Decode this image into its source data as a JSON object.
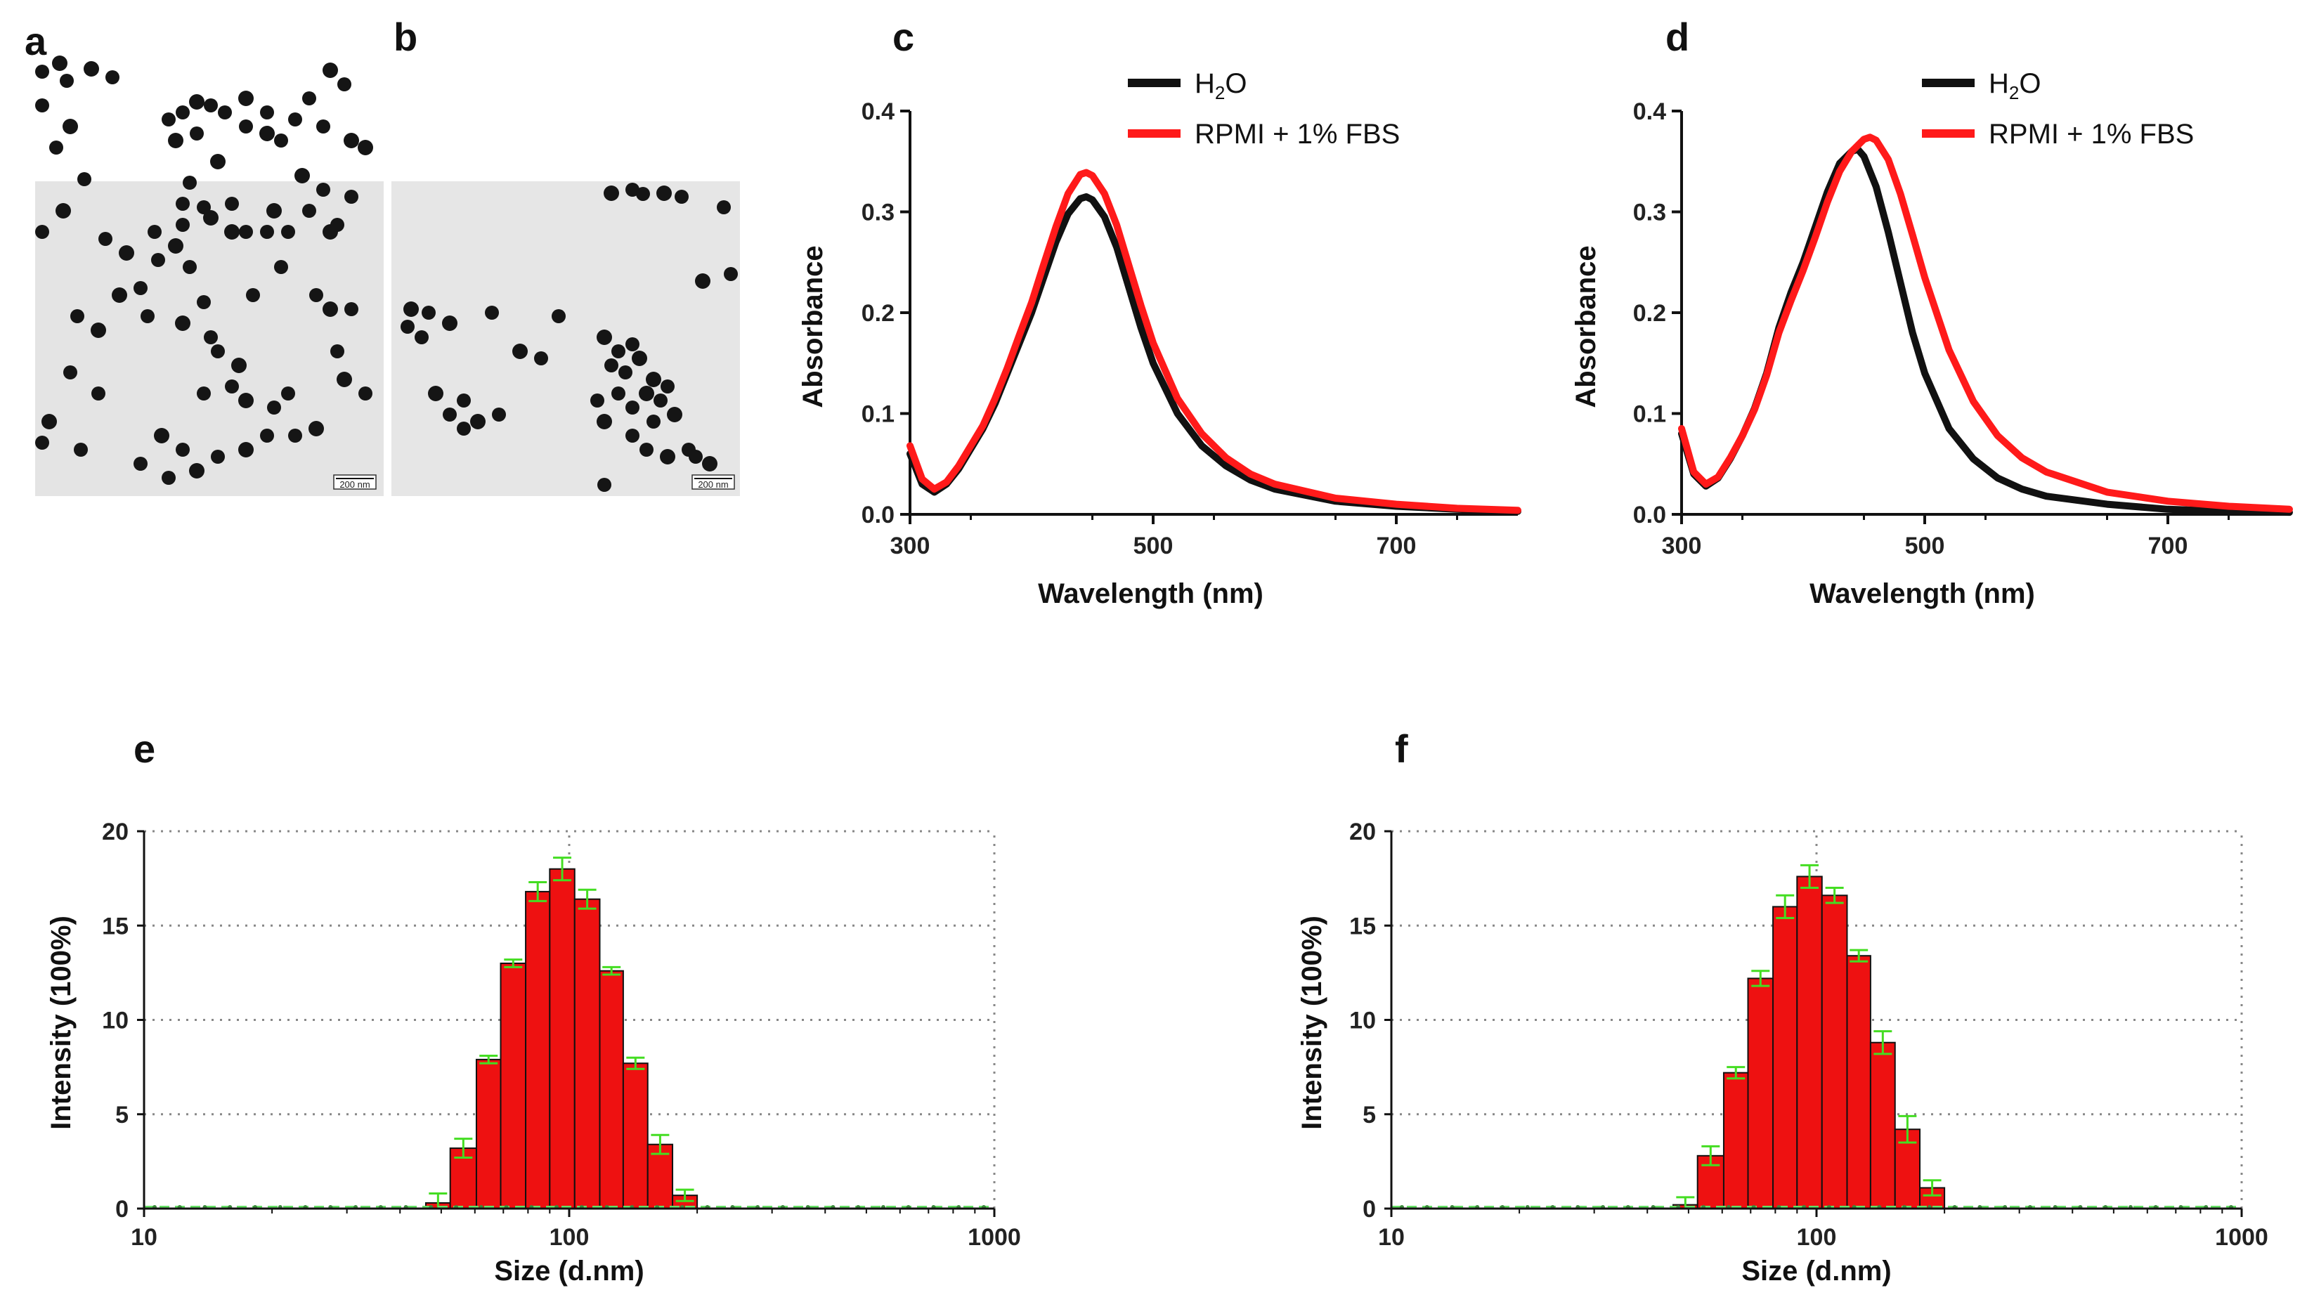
{
  "panels": {
    "a": {
      "letter": "a",
      "scale_bar_label": "200 nm"
    },
    "b": {
      "letter": "b",
      "scale_bar_label": "200 nm"
    },
    "c": {
      "letter": "c"
    },
    "d": {
      "letter": "d"
    },
    "e": {
      "letter": "e"
    },
    "f": {
      "letter": "f"
    }
  },
  "colors": {
    "h2o": "#111111",
    "rpmi": "#ff1a1a",
    "bar_fill": "#ee1111",
    "error_bar": "#44dd22",
    "baseline": "#66e066",
    "grid": "#888888"
  },
  "chart_data": [
    {
      "id": "c",
      "type": "line",
      "xlabel": "Wavelength (nm)",
      "ylabel": "Absorbance",
      "xlim": [
        300,
        800
      ],
      "ylim": [
        0.0,
        0.4
      ],
      "xticks": [
        "300",
        "500",
        "700"
      ],
      "xtick_values": [
        300,
        500,
        700
      ],
      "yticks": [
        "0.0",
        "0.1",
        "0.2",
        "0.3",
        "0.4"
      ],
      "ytick_values": [
        0.0,
        0.1,
        0.2,
        0.3,
        0.4
      ],
      "legend": [
        "H",
        "2",
        "O",
        "RPMI + 1% FBS"
      ],
      "series": [
        {
          "name": "H2O",
          "x": [
            300,
            310,
            320,
            330,
            340,
            350,
            360,
            370,
            380,
            390,
            400,
            410,
            420,
            430,
            440,
            445,
            450,
            460,
            470,
            480,
            490,
            500,
            520,
            540,
            560,
            580,
            600,
            650,
            700,
            750,
            800
          ],
          "y": [
            0.06,
            0.03,
            0.022,
            0.03,
            0.045,
            0.065,
            0.085,
            0.11,
            0.14,
            0.17,
            0.2,
            0.235,
            0.27,
            0.298,
            0.313,
            0.315,
            0.312,
            0.295,
            0.265,
            0.225,
            0.185,
            0.15,
            0.1,
            0.068,
            0.048,
            0.034,
            0.025,
            0.013,
            0.008,
            0.005,
            0.003
          ]
        },
        {
          "name": "RPMI + 1% FBS",
          "x": [
            300,
            310,
            320,
            330,
            340,
            350,
            360,
            370,
            380,
            390,
            400,
            410,
            420,
            430,
            440,
            445,
            450,
            460,
            470,
            480,
            490,
            500,
            520,
            540,
            560,
            580,
            600,
            650,
            700,
            750,
            800
          ],
          "y": [
            0.068,
            0.035,
            0.025,
            0.032,
            0.048,
            0.068,
            0.088,
            0.115,
            0.145,
            0.178,
            0.21,
            0.248,
            0.285,
            0.318,
            0.337,
            0.339,
            0.336,
            0.318,
            0.287,
            0.247,
            0.207,
            0.17,
            0.115,
            0.08,
            0.056,
            0.04,
            0.03,
            0.016,
            0.01,
            0.006,
            0.004
          ]
        }
      ]
    },
    {
      "id": "d",
      "type": "line",
      "xlabel": "Wavelength (nm)",
      "ylabel": "Absorbance",
      "xlim": [
        300,
        800
      ],
      "ylim": [
        0.0,
        0.4
      ],
      "xticks": [
        "300",
        "500",
        "700"
      ],
      "xtick_values": [
        300,
        500,
        700
      ],
      "yticks": [
        "0.0",
        "0.1",
        "0.2",
        "0.3",
        "0.4"
      ],
      "ytick_values": [
        0.0,
        0.1,
        0.2,
        0.3,
        0.4
      ],
      "legend": [
        "H",
        "2",
        "O",
        "RPMI + 1% FBS"
      ],
      "series": [
        {
          "name": "H2O",
          "x": [
            300,
            310,
            320,
            330,
            340,
            350,
            360,
            370,
            380,
            390,
            400,
            410,
            420,
            430,
            440,
            445,
            450,
            460,
            470,
            480,
            490,
            500,
            520,
            540,
            560,
            580,
            600,
            650,
            700,
            750,
            800
          ],
          "y": [
            0.08,
            0.04,
            0.028,
            0.036,
            0.055,
            0.078,
            0.105,
            0.14,
            0.185,
            0.22,
            0.25,
            0.285,
            0.32,
            0.348,
            0.36,
            0.362,
            0.355,
            0.325,
            0.28,
            0.23,
            0.18,
            0.14,
            0.085,
            0.055,
            0.036,
            0.025,
            0.018,
            0.01,
            0.005,
            0.003,
            0.002
          ]
        },
        {
          "name": "RPMI + 1% FBS",
          "x": [
            300,
            310,
            320,
            330,
            340,
            350,
            360,
            370,
            380,
            390,
            400,
            410,
            420,
            430,
            440,
            450,
            455,
            460,
            470,
            480,
            490,
            500,
            520,
            540,
            560,
            580,
            600,
            650,
            700,
            750,
            800
          ],
          "y": [
            0.085,
            0.042,
            0.03,
            0.037,
            0.056,
            0.078,
            0.104,
            0.138,
            0.18,
            0.212,
            0.242,
            0.275,
            0.31,
            0.34,
            0.36,
            0.372,
            0.374,
            0.371,
            0.352,
            0.318,
            0.277,
            0.235,
            0.163,
            0.112,
            0.078,
            0.056,
            0.042,
            0.022,
            0.013,
            0.008,
            0.005
          ]
        }
      ]
    },
    {
      "id": "e",
      "type": "bar",
      "xlabel": "Size (d.nm)",
      "ylabel": "Intensity (100%)",
      "xscale": "log",
      "xlim": [
        10,
        1000
      ],
      "ylim": [
        0,
        20
      ],
      "xticks": [
        "10",
        "100",
        "1000"
      ],
      "xtick_values": [
        10,
        100,
        1000
      ],
      "yticks": [
        "0",
        "5",
        "10",
        "15",
        "20"
      ],
      "ytick_values": [
        0,
        5,
        10,
        15,
        20
      ],
      "grid": true,
      "bin_edges": [
        46.0,
        52.5,
        60.5,
        69.0,
        79.0,
        90.0,
        103.0,
        118.0,
        134.0,
        153.0,
        175.0,
        200.0,
        228.0
      ],
      "values": [
        0.3,
        3.2,
        7.9,
        13.0,
        16.8,
        18.0,
        16.4,
        12.6,
        7.7,
        3.4,
        0.7,
        0.0
      ],
      "errors": [
        0.5,
        0.5,
        0.2,
        0.2,
        0.5,
        0.6,
        0.5,
        0.2,
        0.3,
        0.5,
        0.3,
        0.0
      ]
    },
    {
      "id": "f",
      "type": "bar",
      "xlabel": "Size (d.nm)",
      "ylabel": "Intensity (100%)",
      "xscale": "log",
      "xlim": [
        10,
        1000
      ],
      "ylim": [
        0,
        20
      ],
      "xticks": [
        "10",
        "100",
        "1000"
      ],
      "xtick_values": [
        10,
        100,
        1000
      ],
      "yticks": [
        "0",
        "5",
        "10",
        "15",
        "20"
      ],
      "ytick_values": [
        0,
        5,
        10,
        15,
        20
      ],
      "grid": true,
      "bin_edges": [
        46.0,
        52.5,
        60.5,
        69.0,
        79.0,
        90.0,
        103.0,
        118.0,
        134.0,
        153.0,
        175.0,
        200.0,
        228.0
      ],
      "values": [
        0.2,
        2.8,
        7.2,
        12.2,
        16.0,
        17.6,
        16.6,
        13.4,
        8.8,
        4.2,
        1.1,
        0.0
      ],
      "errors": [
        0.4,
        0.5,
        0.3,
        0.4,
        0.6,
        0.6,
        0.4,
        0.3,
        0.6,
        0.7,
        0.4,
        0.0
      ]
    }
  ]
}
